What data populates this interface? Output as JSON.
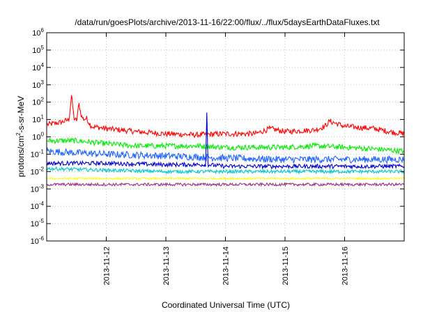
{
  "chart_data": {
    "type": "line",
    "title": "/data/run/goesPlots/archive/2013-11-16/22:00/flux/../flux/5daysEarthDataFluxes.txt",
    "xlabel": "Coordinated Universal Time (UTC)",
    "ylabel_prefix": "protons/cm",
    "ylabel_sup": "2",
    "ylabel_suffix": "-s-sr-MeV",
    "yscale": "log",
    "ylim": [
      1e-06,
      1000000.0
    ],
    "xlim": [
      "2013-11-11 00:00",
      "2013-11-17 00:00"
    ],
    "y_tick_base": "10",
    "y_tick_exponents": [
      "-6",
      "-5",
      "-4",
      "-3",
      "-2",
      "-1",
      "0",
      "1",
      "2",
      "3",
      "4",
      "5",
      "6"
    ],
    "x_ticks": [
      "2013-11-12",
      "2013-11-13",
      "2013-11-14",
      "2013-11-15",
      "2013-11-16"
    ],
    "grid": true,
    "legend": "none",
    "series": [
      {
        "color": "#ff0000",
        "x": [
          "2013-11-11 00:00",
          "2013-11-11 06:00",
          "2013-11-11 09:00",
          "2013-11-11 10:00",
          "2013-11-11 11:00",
          "2013-11-11 12:00",
          "2013-11-11 13:00",
          "2013-11-11 14:00",
          "2013-11-11 15:00",
          "2013-11-11 16:00",
          "2013-11-11 18:00",
          "2013-11-12 00:00",
          "2013-11-12 12:00",
          "2013-11-13 00:00",
          "2013-11-13 12:00",
          "2013-11-14 00:00",
          "2013-11-14 12:00",
          "2013-11-14 18:00",
          "2013-11-15 00:00",
          "2013-11-15 12:00",
          "2013-11-15 16:00",
          "2013-11-15 18:00",
          "2013-11-16 00:00",
          "2013-11-16 12:00",
          "2013-11-16 18:00",
          "2013-11-17 00:00"
        ],
        "values": [
          5,
          7,
          10,
          250,
          12,
          8,
          80,
          15,
          10,
          12,
          4,
          3,
          2,
          1.5,
          1.3,
          1.5,
          1.5,
          3,
          2,
          2.5,
          4,
          8,
          4,
          3,
          2,
          1.5
        ]
      },
      {
        "color": "#00ee00",
        "x": [
          "2013-11-11 00:00",
          "2013-11-11 12:00",
          "2013-11-12 00:00",
          "2013-11-12 12:00",
          "2013-11-13 00:00",
          "2013-11-13 12:00",
          "2013-11-14 00:00",
          "2013-11-14 12:00",
          "2013-11-15 00:00",
          "2013-11-15 12:00",
          "2013-11-16 00:00",
          "2013-11-16 12:00",
          "2013-11-17 00:00"
        ],
        "values": [
          0.6,
          0.6,
          0.4,
          0.3,
          0.3,
          0.3,
          0.25,
          0.25,
          0.25,
          0.3,
          0.25,
          0.2,
          0.15
        ]
      },
      {
        "color": "#1e64ff",
        "x": [
          "2013-11-11 00:00",
          "2013-11-11 12:00",
          "2013-11-12 00:00",
          "2013-11-13 00:00",
          "2013-11-14 00:00",
          "2013-11-15 00:00",
          "2013-11-16 00:00",
          "2013-11-17 00:00"
        ],
        "values": [
          0.15,
          0.12,
          0.1,
          0.08,
          0.06,
          0.05,
          0.05,
          0.05
        ]
      },
      {
        "color": "#0000cc",
        "x": [
          "2013-11-11 00:00",
          "2013-11-12 00:00",
          "2013-11-13 00:00",
          "2013-11-13 16:00",
          "2013-11-13 16:30",
          "2013-11-13 17:00",
          "2013-11-14 00:00",
          "2013-11-15 00:00",
          "2013-11-16 00:00",
          "2013-11-17 00:00"
        ],
        "values": [
          0.03,
          0.03,
          0.025,
          0.025,
          25,
          0.025,
          0.02,
          0.02,
          0.02,
          0.02
        ]
      },
      {
        "color": "#00c8c8",
        "x": [
          "2013-11-11 00:00",
          "2013-11-12 00:00",
          "2013-11-13 00:00",
          "2013-11-14 00:00",
          "2013-11-15 00:00",
          "2013-11-16 00:00",
          "2013-11-17 00:00"
        ],
        "values": [
          0.015,
          0.012,
          0.01,
          0.01,
          0.01,
          0.01,
          0.01
        ]
      },
      {
        "color": "#ffff00",
        "x": [
          "2013-11-11 00:00",
          "2013-11-17 00:00"
        ],
        "values": [
          0.004,
          0.004
        ]
      },
      {
        "color": "#9b2c7d",
        "x": [
          "2013-11-11 00:00",
          "2013-11-17 00:00"
        ],
        "values": [
          0.0018,
          0.0018
        ]
      }
    ]
  }
}
